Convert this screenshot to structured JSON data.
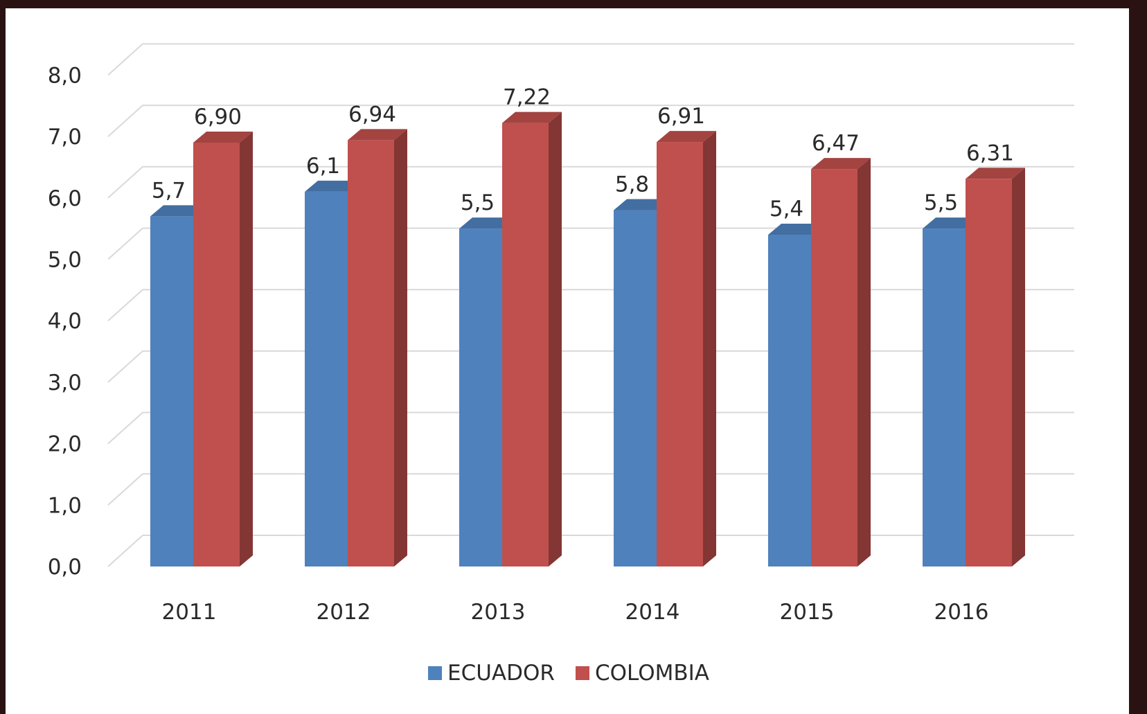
{
  "chart_data": {
    "type": "bar",
    "style": "3d-clustered-column",
    "title": "",
    "xlabel": "",
    "ylabel": "",
    "categories": [
      "2011",
      "2012",
      "2013",
      "2014",
      "2015",
      "2016"
    ],
    "series": [
      {
        "name": "ECUADOR",
        "color": "#4f81bd",
        "values": [
          5.7,
          6.1,
          5.5,
          5.8,
          5.4,
          5.5
        ],
        "labels": [
          "5,7",
          "6,1",
          "5,5",
          "5,8",
          "5,4",
          "5,5"
        ]
      },
      {
        "name": "COLOMBIA",
        "color": "#c0504d",
        "values": [
          6.9,
          6.94,
          7.22,
          6.91,
          6.47,
          6.31
        ],
        "labels": [
          "6,90",
          "6,94",
          "7,22",
          "6,91",
          "6,47",
          "6,31"
        ]
      }
    ],
    "y_ticks": [
      "0,0",
      "1,0",
      "2,0",
      "3,0",
      "4,0",
      "5,0",
      "6,0",
      "7,0",
      "8,0"
    ],
    "ylim": [
      0,
      8
    ],
    "grid": true,
    "legend_position": "bottom"
  }
}
